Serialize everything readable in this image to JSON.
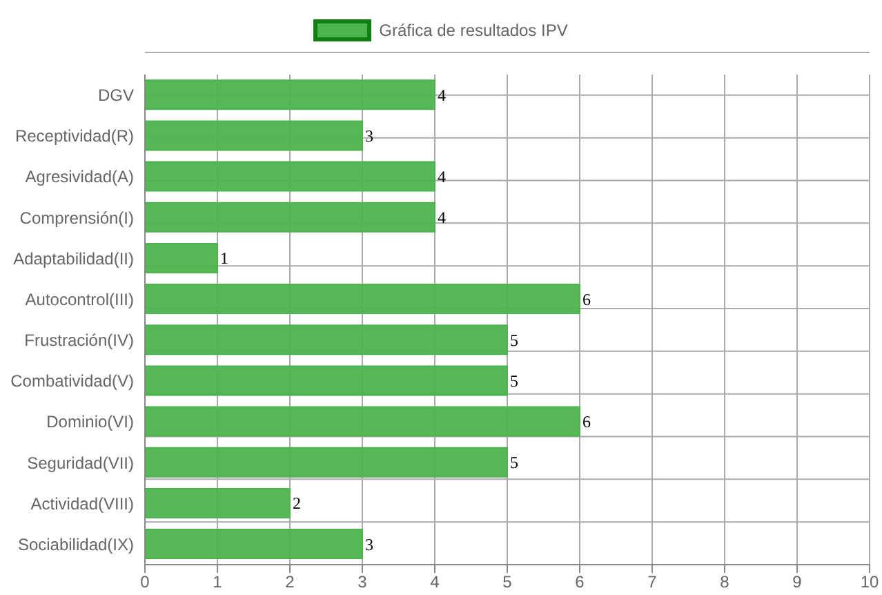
{
  "chart_data": {
    "type": "bar",
    "orientation": "horizontal",
    "categories": [
      "DGV",
      "Receptividad(R)",
      "Agresividad(A)",
      "Comprensión(I)",
      "Adaptabilidad(II)",
      "Autocontrol(III)",
      "Frustración(IV)",
      "Combatividad(V)",
      "Dominio(VI)",
      "Seguridad(VII)",
      "Actividad(VIII)",
      "Sociabilidad(IX)"
    ],
    "series": [
      {
        "name": "Gráfica de resultados IPV",
        "color": "#4db34d",
        "values": [
          4,
          3,
          4,
          4,
          1,
          6,
          5,
          5,
          6,
          5,
          2,
          3
        ]
      }
    ],
    "xlim": [
      0,
      10
    ],
    "xticks": [
      0,
      1,
      2,
      3,
      4,
      5,
      6,
      7,
      8,
      9,
      10
    ],
    "grid": true,
    "legend": "top",
    "data_labels": true
  }
}
